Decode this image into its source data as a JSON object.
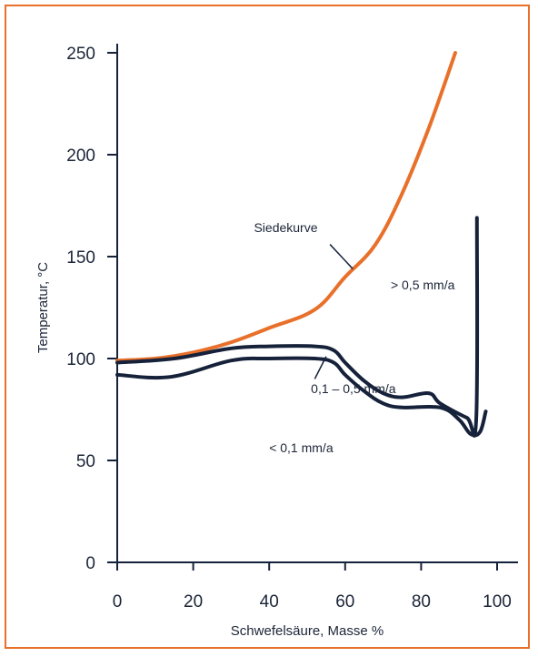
{
  "chart_data": {
    "type": "line",
    "title": "",
    "xlabel": "Schwefelsäure, Masse %",
    "ylabel": "Temperatur, °C",
    "xlim": [
      0,
      100
    ],
    "ylim": [
      0,
      250
    ],
    "x_ticks": [
      "0",
      "20",
      "40",
      "60",
      "80",
      "100"
    ],
    "y_ticks": [
      "0",
      "50",
      "100",
      "150",
      "200",
      "250"
    ],
    "grid": false,
    "colors": {
      "boiling": "#e8702a",
      "iso": "#16213a",
      "frame": "#e8702a"
    },
    "series": [
      {
        "name": "Siedekurve",
        "color": "#e8702a",
        "x": [
          0,
          10,
          20,
          30,
          40,
          52,
          60,
          68,
          75,
          82,
          89
        ],
        "y": [
          99,
          100,
          103,
          108,
          115,
          124,
          140,
          156,
          181,
          213,
          250
        ]
      },
      {
        "color": "#16213a",
        "x": [
          0,
          15,
          30,
          40,
          52,
          57,
          60,
          65,
          70,
          75,
          82,
          85,
          92,
          94.5,
          94.7
        ],
        "y": [
          98,
          100,
          105,
          106,
          106,
          104,
          98,
          89,
          83,
          81,
          83,
          78,
          71,
          70,
          169
        ]
      },
      {
        "color": "#16213a",
        "x": [
          0,
          14,
          30,
          40,
          52,
          57,
          60,
          65,
          70,
          75,
          85,
          90,
          93,
          95.5,
          97
        ],
        "y": [
          92,
          91,
          99,
          100,
          100,
          98,
          92,
          84,
          78,
          76,
          76,
          70,
          63,
          64,
          74
        ]
      }
    ],
    "annotations": [
      {
        "text": "Siedekurve",
        "x": 36,
        "y": 162
      },
      {
        "text": "> 0,5 mm/a",
        "x": 72,
        "y": 134
      },
      {
        "text": "0,1 – 0,5 mm/a",
        "x": 51,
        "y": 83
      },
      {
        "text": "< 0,1 mm/a",
        "x": 40,
        "y": 54
      }
    ],
    "leaders": [
      {
        "from": [
          56,
          156
        ],
        "to": [
          62,
          144
        ]
      },
      {
        "from": [
          52,
          90
        ],
        "to": [
          55,
          101
        ]
      }
    ]
  }
}
